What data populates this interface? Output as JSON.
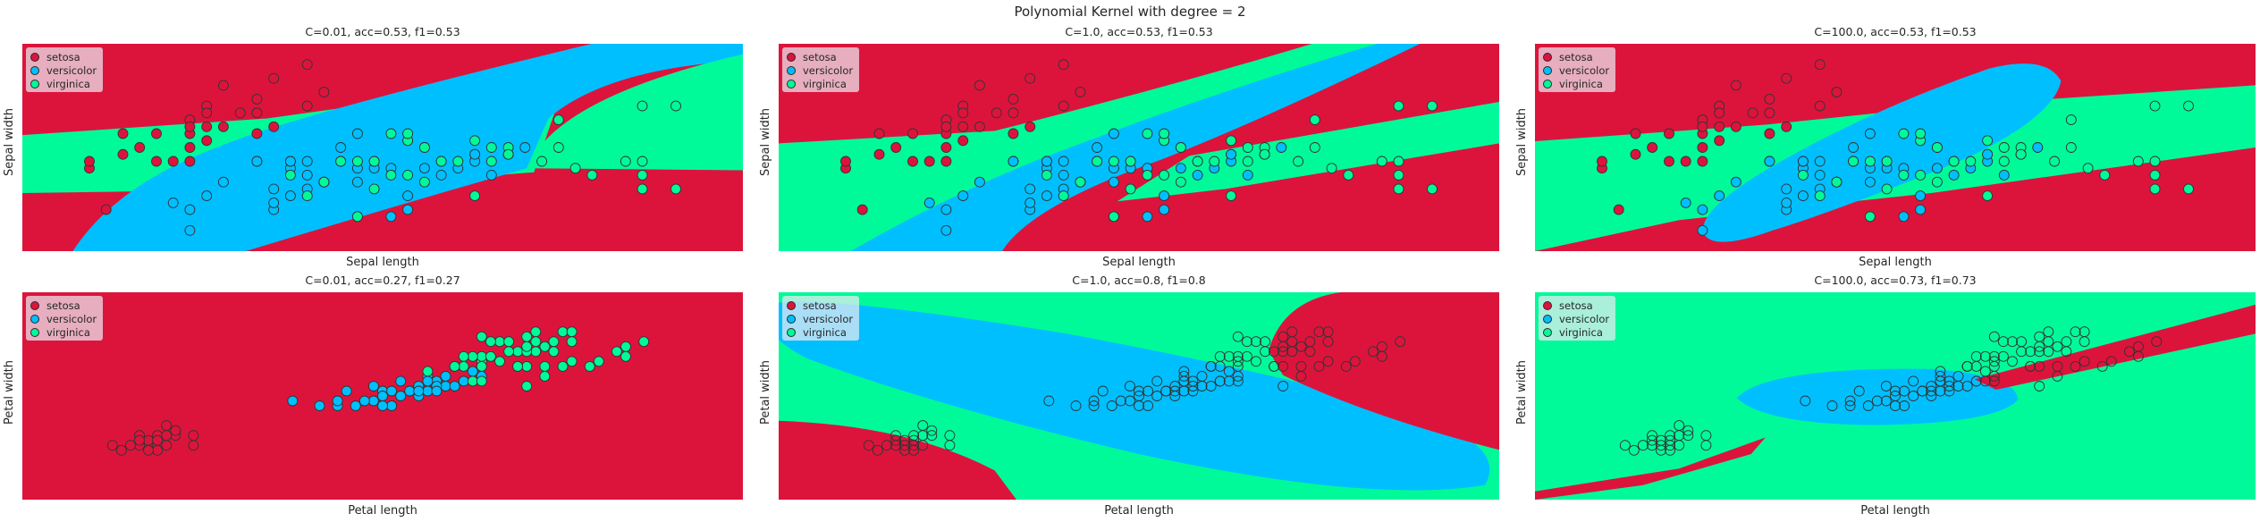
{
  "title": "Polynomial Kernel with degree = 2",
  "colors": {
    "setosa": "#dc143c",
    "versicolor": "#00bfff",
    "virginica": "#00fa9a"
  },
  "icon": "scatter-plot-icon",
  "legend": [
    "setosa",
    "versicolor",
    "virginica"
  ],
  "chart_data": [
    {
      "type": "scatter",
      "title": "C=0.01, acc=0.53, f1=0.53",
      "xlabel": "Sepal length",
      "ylabel": "Sepal width",
      "xlim": [
        4.0,
        8.3
      ],
      "ylim": [
        1.7,
        4.7
      ],
      "grid": false,
      "legend_position": "upper-left",
      "regions": "sepal_c001",
      "features": "sepal",
      "point_colors": true
    },
    {
      "type": "scatter",
      "title": "C=1.0, acc=0.53, f1=0.53",
      "xlabel": "Sepal length",
      "ylabel": "Sepal width",
      "xlim": [
        4.0,
        8.3
      ],
      "ylim": [
        1.7,
        4.7
      ],
      "grid": false,
      "legend_position": "upper-left",
      "regions": "sepal_c1",
      "features": "sepal",
      "point_colors": true
    },
    {
      "type": "scatter",
      "title": "C=100.0, acc=0.53, f1=0.53",
      "xlabel": "Sepal length",
      "ylabel": "Sepal width",
      "xlim": [
        4.0,
        8.3
      ],
      "ylim": [
        1.7,
        4.7
      ],
      "grid": false,
      "legend_position": "upper-left",
      "regions": "sepal_c100",
      "features": "sepal",
      "point_colors": true
    },
    {
      "type": "scatter",
      "title": "C=0.01, acc=0.27, f1=0.27",
      "xlabel": "Petal length",
      "ylabel": "Petal width",
      "xlim": [
        0.0,
        8.0
      ],
      "ylim": [
        -0.9,
        3.3
      ],
      "grid": false,
      "legend_position": "upper-left",
      "regions": "petal_c001",
      "features": "petal",
      "point_colors": true
    },
    {
      "type": "scatter",
      "title": "C=1.0, acc=0.8, f1=0.8",
      "xlabel": "Petal length",
      "ylabel": "Petal width",
      "xlim": [
        0.0,
        8.0
      ],
      "ylim": [
        -0.9,
        3.3
      ],
      "grid": false,
      "legend_position": "upper-left",
      "regions": "petal_c1",
      "features": "petal",
      "point_colors": false
    },
    {
      "type": "scatter",
      "title": "C=100.0, acc=0.73, f1=0.73",
      "xlabel": "Petal length",
      "ylabel": "Petal width",
      "xlim": [
        0.0,
        8.0
      ],
      "ylim": [
        -0.9,
        3.3
      ],
      "grid": false,
      "legend_position": "upper-left",
      "regions": "petal_c100",
      "features": "petal",
      "point_colors": false
    }
  ],
  "points": {
    "sepal": [
      [
        4.7,
        3.2,
        0
      ],
      [
        4.6,
        3.1,
        0
      ],
      [
        4.6,
        3.4,
        0
      ],
      [
        4.4,
        2.9,
        0
      ],
      [
        4.4,
        3.0,
        0
      ],
      [
        4.5,
        2.3,
        0
      ],
      [
        4.9,
        3.0,
        0
      ],
      [
        4.8,
        3.0,
        0
      ],
      [
        4.8,
        3.4,
        0
      ],
      [
        5.0,
        3.6,
        0
      ],
      [
        5.0,
        3.4,
        0
      ],
      [
        5.0,
        3.5,
        0
      ],
      [
        5.0,
        3.0,
        0
      ],
      [
        5.0,
        3.2,
        0
      ],
      [
        5.1,
        3.5,
        0
      ],
      [
        5.1,
        3.8,
        0
      ],
      [
        5.1,
        3.3,
        0
      ],
      [
        5.2,
        3.5,
        0
      ],
      [
        5.2,
        4.1,
        0
      ],
      [
        5.3,
        3.7,
        0
      ],
      [
        5.4,
        3.9,
        0
      ],
      [
        5.4,
        3.4,
        0
      ],
      [
        5.4,
        3.7,
        0
      ],
      [
        5.5,
        4.2,
        0
      ],
      [
        5.5,
        3.5,
        0
      ],
      [
        5.7,
        4.4,
        0
      ],
      [
        5.7,
        3.8,
        0
      ],
      [
        5.8,
        4.0,
        0
      ],
      [
        5.4,
        3.0,
        0
      ],
      [
        5.1,
        3.7,
        0
      ],
      [
        7.0,
        3.2,
        1
      ],
      [
        6.4,
        3.2,
        1
      ],
      [
        6.9,
        3.1,
        1
      ],
      [
        5.5,
        2.3,
        1
      ],
      [
        6.5,
        2.8,
        1
      ],
      [
        5.7,
        2.8,
        1
      ],
      [
        6.3,
        3.3,
        1
      ],
      [
        4.9,
        2.4,
        1
      ],
      [
        6.6,
        2.9,
        1
      ],
      [
        5.2,
        2.7,
        1
      ],
      [
        5.0,
        2.0,
        1
      ],
      [
        5.9,
        3.0,
        1
      ],
      [
        6.0,
        2.2,
        1
      ],
      [
        6.1,
        2.9,
        1
      ],
      [
        5.6,
        2.9,
        1
      ],
      [
        6.7,
        3.1,
        1
      ],
      [
        5.6,
        3.0,
        1
      ],
      [
        5.8,
        2.7,
        1
      ],
      [
        6.2,
        2.2,
        1
      ],
      [
        5.6,
        2.5,
        1
      ],
      [
        5.9,
        3.2,
        1
      ],
      [
        6.3,
        2.5,
        1
      ],
      [
        6.4,
        2.9,
        1
      ],
      [
        6.8,
        2.8,
        1
      ],
      [
        6.7,
        3.0,
        1
      ],
      [
        6.0,
        2.9,
        1
      ],
      [
        5.7,
        2.6,
        1
      ],
      [
        5.5,
        2.4,
        1
      ],
      [
        5.8,
        2.7,
        1
      ],
      [
        6.0,
        2.7,
        1
      ],
      [
        5.4,
        3.0,
        1
      ],
      [
        6.0,
        3.4,
        1
      ],
      [
        6.7,
        3.1,
        1
      ],
      [
        6.3,
        2.3,
        1
      ],
      [
        5.6,
        3.0,
        1
      ],
      [
        5.5,
        2.6,
        1
      ],
      [
        6.1,
        3.0,
        1
      ],
      [
        5.0,
        2.3,
        1
      ],
      [
        5.7,
        3.0,
        1
      ],
      [
        6.2,
        2.9,
        1
      ],
      [
        5.1,
        2.5,
        1
      ],
      [
        6.9,
        3.1,
        1
      ],
      [
        6.3,
        3.3,
        2
      ],
      [
        5.8,
        2.7,
        2
      ],
      [
        7.1,
        3.0,
        2
      ],
      [
        6.5,
        3.0,
        2
      ],
      [
        7.6,
        3.0,
        2
      ],
      [
        7.3,
        2.9,
        2
      ],
      [
        6.7,
        2.5,
        2
      ],
      [
        7.2,
        3.6,
        2
      ],
      [
        6.4,
        2.7,
        2
      ],
      [
        6.8,
        3.0,
        2
      ],
      [
        5.7,
        2.5,
        2
      ],
      [
        6.4,
        3.2,
        2
      ],
      [
        7.7,
        3.8,
        2
      ],
      [
        7.7,
        2.6,
        2
      ],
      [
        6.9,
        3.2,
        2
      ],
      [
        5.6,
        2.8,
        2
      ],
      [
        7.7,
        2.8,
        2
      ],
      [
        6.7,
        3.3,
        2
      ],
      [
        7.2,
        3.2,
        2
      ],
      [
        6.2,
        2.8,
        2
      ],
      [
        6.1,
        3.0,
        2
      ],
      [
        7.4,
        2.8,
        2
      ],
      [
        7.9,
        3.8,
        2
      ],
      [
        6.3,
        2.8,
        2
      ],
      [
        6.1,
        2.6,
        2
      ],
      [
        7.7,
        3.0,
        2
      ],
      [
        6.3,
        3.4,
        2
      ],
      [
        6.0,
        3.0,
        2
      ],
      [
        6.9,
        3.1,
        2
      ],
      [
        5.8,
        2.7,
        2
      ],
      [
        6.8,
        3.2,
        2
      ],
      [
        6.5,
        3.0,
        2
      ],
      [
        6.2,
        3.4,
        2
      ],
      [
        5.9,
        3.0,
        2
      ],
      [
        6.6,
        3.0,
        2
      ],
      [
        7.9,
        2.6,
        2
      ],
      [
        6.0,
        2.2,
        2
      ]
    ],
    "petal": [
      [
        1.4,
        0.2,
        0
      ],
      [
        1.3,
        0.2,
        0
      ],
      [
        1.5,
        0.2,
        0
      ],
      [
        1.4,
        0.3,
        0
      ],
      [
        1.7,
        0.4,
        0
      ],
      [
        1.5,
        0.1,
        0
      ],
      [
        1.6,
        0.2,
        0
      ],
      [
        1.1,
        0.1,
        0
      ],
      [
        1.2,
        0.2,
        0
      ],
      [
        1.5,
        0.4,
        0
      ],
      [
        1.3,
        0.4,
        0
      ],
      [
        1.0,
        0.2,
        0
      ],
      [
        1.7,
        0.5,
        0
      ],
      [
        1.9,
        0.2,
        0
      ],
      [
        1.6,
        0.6,
        0
      ],
      [
        1.9,
        0.4,
        0
      ],
      [
        1.5,
        0.3,
        0
      ],
      [
        1.4,
        0.1,
        0
      ],
      [
        1.3,
        0.3,
        0
      ],
      [
        1.6,
        0.4,
        0
      ],
      [
        4.7,
        1.4,
        1
      ],
      [
        4.5,
        1.5,
        1
      ],
      [
        4.9,
        1.5,
        1
      ],
      [
        4.0,
        1.3,
        1
      ],
      [
        4.6,
        1.5,
        1
      ],
      [
        3.3,
        1.0,
        1
      ],
      [
        3.9,
        1.4,
        1
      ],
      [
        3.5,
        1.0,
        1
      ],
      [
        4.2,
        1.5,
        1
      ],
      [
        3.6,
        1.3,
        1
      ],
      [
        4.4,
        1.4,
        1
      ],
      [
        4.1,
        1.0,
        1
      ],
      [
        4.5,
        1.3,
        1
      ],
      [
        3.9,
        1.1,
        1
      ],
      [
        4.8,
        1.8,
        1
      ],
      [
        4.0,
        1.0,
        1
      ],
      [
        4.3,
        1.3,
        1
      ],
      [
        5.0,
        1.7,
        1
      ],
      [
        3.8,
        1.1,
        1
      ],
      [
        3.7,
        1.0,
        1
      ],
      [
        5.1,
        1.6,
        1
      ],
      [
        4.4,
        1.2,
        1
      ],
      [
        4.6,
        1.4,
        1
      ],
      [
        4.7,
        1.6,
        1
      ],
      [
        4.2,
        1.2,
        1
      ],
      [
        4.9,
        1.5,
        1
      ],
      [
        4.3,
        1.3,
        1
      ],
      [
        3.0,
        1.1,
        1
      ],
      [
        4.1,
        1.3,
        1
      ],
      [
        4.4,
        1.3,
        1
      ],
      [
        4.5,
        1.6,
        1
      ],
      [
        4.8,
        1.4,
        1
      ],
      [
        3.5,
        1.1,
        1
      ],
      [
        4.0,
        1.2,
        1
      ],
      [
        4.6,
        1.3,
        1
      ],
      [
        4.5,
        1.5,
        1
      ],
      [
        6.0,
        2.5,
        2
      ],
      [
        5.1,
        1.9,
        2
      ],
      [
        5.9,
        2.1,
        2
      ],
      [
        5.6,
        1.8,
        2
      ],
      [
        5.8,
        2.2,
        2
      ],
      [
        6.6,
        2.1,
        2
      ],
      [
        4.5,
        1.7,
        2
      ],
      [
        6.3,
        1.8,
        2
      ],
      [
        5.8,
        1.8,
        2
      ],
      [
        6.1,
        2.5,
        2
      ],
      [
        5.1,
        2.0,
        2
      ],
      [
        5.3,
        1.9,
        2
      ],
      [
        5.5,
        2.1,
        2
      ],
      [
        5.0,
        2.0,
        2
      ],
      [
        5.1,
        2.4,
        2
      ],
      [
        5.3,
        2.3,
        2
      ],
      [
        5.5,
        1.8,
        2
      ],
      [
        6.7,
        2.2,
        2
      ],
      [
        6.9,
        2.3,
        2
      ],
      [
        5.0,
        1.5,
        2
      ],
      [
        5.7,
        2.3,
        2
      ],
      [
        4.9,
        2.0,
        2
      ],
      [
        6.7,
        2.0,
        2
      ],
      [
        4.9,
        1.8,
        2
      ],
      [
        5.7,
        2.1,
        2
      ],
      [
        6.0,
        1.8,
        2
      ],
      [
        4.8,
        1.8,
        2
      ],
      [
        5.6,
        2.1,
        2
      ],
      [
        5.8,
        1.6,
        2
      ],
      [
        6.4,
        1.9,
        2
      ],
      [
        5.6,
        2.2,
        2
      ],
      [
        5.1,
        1.5,
        2
      ],
      [
        6.1,
        2.3,
        2
      ],
      [
        5.6,
        2.4,
        2
      ],
      [
        5.5,
        1.8,
        2
      ],
      [
        5.4,
        2.1,
        2
      ],
      [
        5.2,
        2.3,
        2
      ],
      [
        5.9,
        2.3,
        2
      ],
      [
        5.7,
        2.5,
        2
      ],
      [
        5.2,
        2.0,
        2
      ],
      [
        5.4,
        2.3,
        2
      ],
      [
        5.1,
        1.8,
        2
      ],
      [
        6.1,
        1.9,
        2
      ],
      [
        4.8,
        1.8,
        2
      ],
      [
        5.6,
        1.4,
        2
      ]
    ]
  }
}
